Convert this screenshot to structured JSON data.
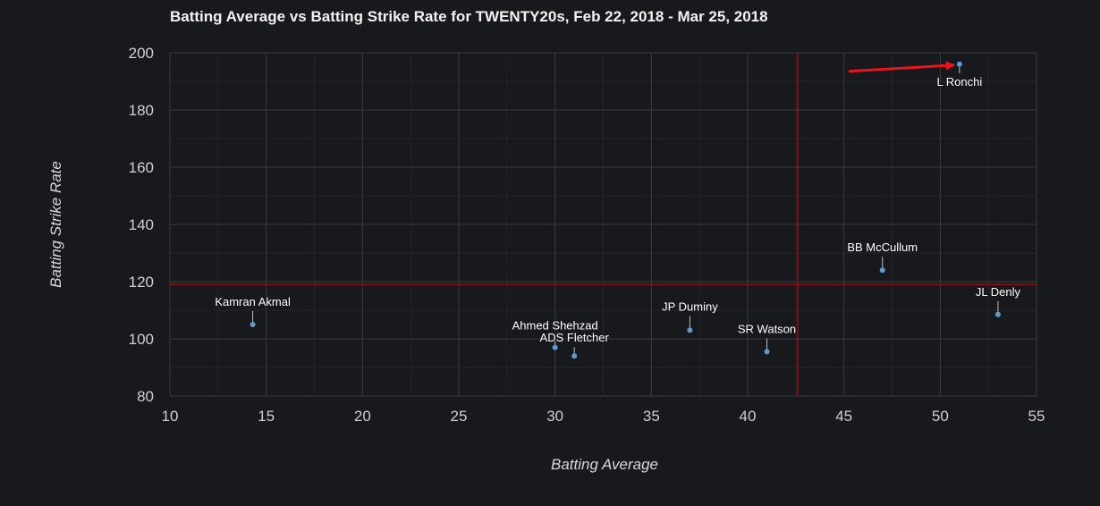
{
  "chart_data": {
    "type": "scatter",
    "title": "Batting Average vs Batting Strike Rate for TWENTY20s, Feb 22, 2018 - Mar 25, 2018",
    "xlabel": "Batting Average",
    "ylabel": "Batting Strike Rate",
    "xlim": [
      10,
      55
    ],
    "ylim": [
      80,
      200
    ],
    "x_ticks": [
      10,
      15,
      20,
      25,
      30,
      35,
      40,
      45,
      50,
      55
    ],
    "y_ticks": [
      80,
      100,
      120,
      140,
      160,
      180,
      200
    ],
    "grid": true,
    "reference_lines": {
      "x": 42.6,
      "y": 119,
      "color": "#b30e0e"
    },
    "point_color": "#5b9bd5",
    "points": [
      {
        "name": "Kamran Akmal",
        "x": 14.3,
        "y": 105
      },
      {
        "name": "Ahmed Shehzad",
        "x": 30,
        "y": 97
      },
      {
        "name": "ADS Fletcher",
        "x": 31,
        "y": 94
      },
      {
        "name": "JP Duminy",
        "x": 37,
        "y": 103
      },
      {
        "name": "SR Watson",
        "x": 41,
        "y": 95.5
      },
      {
        "name": "BB McCullum",
        "x": 47,
        "y": 124
      },
      {
        "name": "JL Denly",
        "x": 53,
        "y": 108.5
      },
      {
        "name": "L Ronchi",
        "x": 51,
        "y": 196
      }
    ],
    "annotation": {
      "type": "arrow",
      "color": "#e8161b",
      "target": "L Ronchi"
    }
  }
}
